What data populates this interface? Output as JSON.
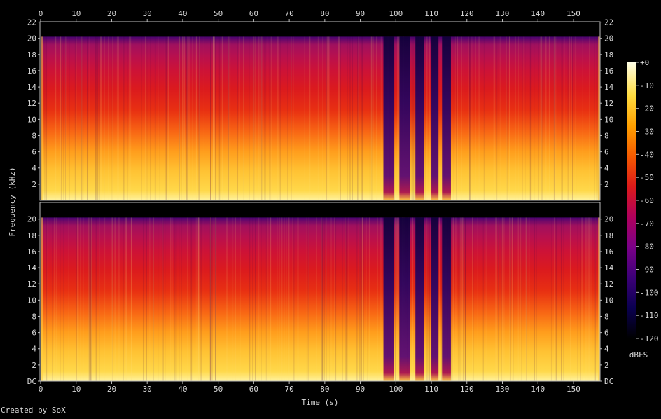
{
  "chart_data": {
    "type": "heatmap",
    "title": "",
    "xlabel": "Time (s)",
    "ylabel": "Frequency (kHz)",
    "xlim": [
      0,
      157.5
    ],
    "ylim": [
      0,
      22.05
    ],
    "x_ticks": [
      0,
      10,
      20,
      30,
      40,
      50,
      60,
      70,
      80,
      90,
      100,
      110,
      120,
      130,
      140,
      150
    ],
    "y_ticks_top": [
      "2",
      "4",
      "6",
      "8",
      "10",
      "12",
      "14",
      "16",
      "18",
      "20",
      "22"
    ],
    "y_ticks_bottom": [
      "DC",
      "2",
      "4",
      "6",
      "8",
      "10",
      "12",
      "14",
      "16",
      "18",
      "20"
    ],
    "channels": [
      "top",
      "bottom"
    ],
    "quiet_segments_s": [
      [
        96.5,
        99.5
      ],
      [
        101,
        104
      ],
      [
        105.5,
        108
      ],
      [
        110,
        112
      ],
      [
        113,
        115.5
      ]
    ],
    "colorbar": {
      "unit": "dBFS",
      "ticks": [
        "+0",
        "-10",
        "-20",
        "-30",
        "-40",
        "-50",
        "-60",
        "-70",
        "-80",
        "-90",
        "-100",
        "-110",
        "-120"
      ],
      "range": [
        -120,
        0
      ],
      "colors": [
        "#000000",
        "#0a0050",
        "#3c0078",
        "#7a0088",
        "#b0005c",
        "#dc1a1a",
        "#f55a00",
        "#ffa000",
        "#ffdc40",
        "#ffffe6"
      ]
    }
  },
  "footer": {
    "credit": "Created by SoX"
  }
}
